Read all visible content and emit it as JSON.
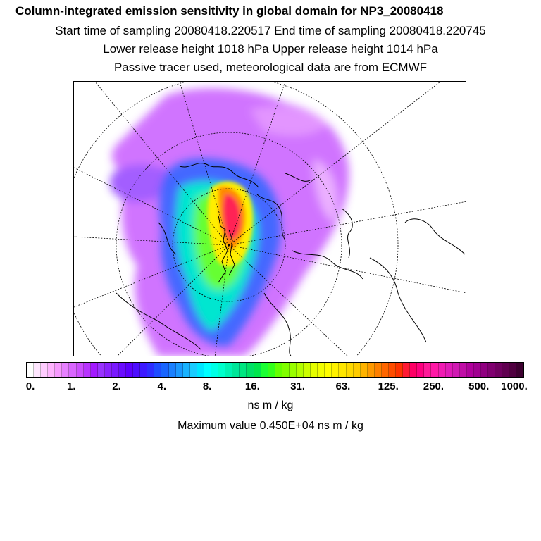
{
  "header": {
    "title": "Column-integrated emission sensitivity in global domain for NP3_20080418",
    "line2": "Start time of sampling 20080418.220517     End time of sampling 20080418.220745",
    "line3": "Lower release height 1018 hPa        Upper release height 1014 hPa",
    "line4": "Passive tracer used, meteorological data are from ECMWF"
  },
  "map": {
    "projection": "north-polar-stereographic",
    "field": "column-integrated emission sensitivity",
    "maximum_value": "0.450E+04"
  },
  "colorbar": {
    "ticks": [
      "0.",
      "1.",
      "2.",
      "4.",
      "8.",
      "16.",
      "31.",
      "63.",
      "125.",
      "250.",
      "500.",
      "1000."
    ],
    "colors": [
      "#ffffff",
      "#ffe6ff",
      "#ffccff",
      "#ffb3ff",
      "#f799ff",
      "#e680ff",
      "#d966ff",
      "#cc4dff",
      "#b833ff",
      "#a31aff",
      "#9933ff",
      "#8a22ff",
      "#7a1aff",
      "#6a0dff",
      "#5c00ff",
      "#4d0dff",
      "#3d1aff",
      "#2e2eff",
      "#1f4dff",
      "#1a66ff",
      "#1a80ff",
      "#1a99ff",
      "#1ab3ff",
      "#1accff",
      "#00e6ff",
      "#00ffff",
      "#00ffe6",
      "#00ffcc",
      "#00f2b3",
      "#00e699",
      "#00e680",
      "#00e066",
      "#00e64d",
      "#1aff33",
      "#33ff1a",
      "#66ff00",
      "#80ff00",
      "#99ff00",
      "#b3ff00",
      "#ccff00",
      "#e6ff00",
      "#f2ff00",
      "#ffff00",
      "#fff200",
      "#ffe600",
      "#ffd900",
      "#ffcc00",
      "#ffb300",
      "#ff9900",
      "#ff8000",
      "#ff6600",
      "#ff4d00",
      "#ff3300",
      "#ff1a33",
      "#ff0066",
      "#ff0080",
      "#ff1a99",
      "#ff1aa6",
      "#f01ab3",
      "#e01ab8",
      "#d01ab3",
      "#c00da6",
      "#b0009c",
      "#a00090",
      "#900080",
      "#800070",
      "#700060",
      "#600050",
      "#500040",
      "#3d0030"
    ],
    "units": "ns m / kg"
  },
  "footer": {
    "max_label": "Maximum value  0.450E+04 ns m / kg"
  }
}
